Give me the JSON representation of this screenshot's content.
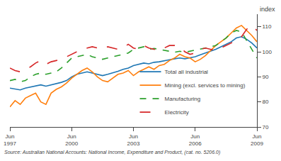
{
  "chart_data": {
    "type": "line",
    "ylabel": "index",
    "annotations": [
      "Source: Australian National Accounts: National Income, Expenditure and Product, (cat. no. 5206.0)"
    ],
    "categories": [
      "Jun\n1997",
      null,
      null,
      null,
      null,
      null,
      null,
      null,
      null,
      null,
      null,
      null,
      "Jun\n2000",
      null,
      null,
      null,
      null,
      null,
      null,
      null,
      null,
      null,
      null,
      null,
      "Jun\n2003",
      null,
      null,
      null,
      null,
      null,
      null,
      null,
      null,
      null,
      null,
      null,
      "Jun\n2006",
      null,
      null,
      null,
      null,
      null,
      null,
      null,
      null,
      null,
      null,
      null,
      "Jun\n2009"
    ],
    "series": [
      {
        "name": "Total all industrial",
        "line_style": "solid",
        "values": [
          85.5,
          85.2,
          84.8,
          85.5,
          86.0,
          86.5,
          86.8,
          86.3,
          86.8,
          87.2,
          87.8,
          88.5,
          90.0,
          91.0,
          91.5,
          92.0,
          91.5,
          91.0,
          90.5,
          91.0,
          91.5,
          92.2,
          93.0,
          93.5,
          94.5,
          95.0,
          95.5,
          95.2,
          95.8,
          96.0,
          96.5,
          96.8,
          97.2,
          97.5,
          97.2,
          97.5,
          98.0,
          98.8,
          99.5,
          100.2,
          101.0,
          102.0,
          103.0,
          104.0,
          105.5,
          106.0,
          105.0,
          103.5,
          101.5
        ]
      },
      {
        "name": "Mining (excl. services to mining)",
        "line_style": "solid",
        "values": [
          78.0,
          80.5,
          79.0,
          81.5,
          82.5,
          83.5,
          80.0,
          79.0,
          83.5,
          85.0,
          86.0,
          87.5,
          89.5,
          91.0,
          92.5,
          93.5,
          92.0,
          90.0,
          88.5,
          88.0,
          89.5,
          91.0,
          91.5,
          92.5,
          90.5,
          92.0,
          93.0,
          94.0,
          93.0,
          94.5,
          95.0,
          96.5,
          97.5,
          99.0,
          98.0,
          97.5,
          96.0,
          97.0,
          98.5,
          100.5,
          102.5,
          104.0,
          105.5,
          107.5,
          109.5,
          110.5,
          108.5,
          106.5,
          104.0
        ]
      },
      {
        "name": "Manufacturing",
        "line_style": "dash",
        "values": [
          88.5,
          89.0,
          88.0,
          88.5,
          90.0,
          91.0,
          91.5,
          91.0,
          91.5,
          92.0,
          93.5,
          95.5,
          97.5,
          98.0,
          98.5,
          99.0,
          98.0,
          97.5,
          97.0,
          97.5,
          98.0,
          98.5,
          99.0,
          99.5,
          101.0,
          101.5,
          102.0,
          101.0,
          101.3,
          101.0,
          100.5,
          100.2,
          99.8,
          100.2,
          99.8,
          100.2,
          100.5,
          101.0,
          101.5,
          102.0,
          102.5,
          104.0,
          105.5,
          107.5,
          108.5,
          108.0,
          104.5,
          101.0,
          97.5
        ]
      },
      {
        "name": "Electricity",
        "line_style": "longdash",
        "values": [
          93.5,
          92.5,
          92.0,
          93.0,
          94.0,
          95.5,
          96.5,
          95.0,
          96.0,
          96.5,
          97.0,
          98.0,
          99.0,
          100.0,
          101.0,
          101.5,
          102.0,
          101.5,
          101.0,
          102.0,
          101.5,
          101.0,
          101.5,
          103.0,
          101.5,
          101.0,
          102.5,
          101.5,
          101.0,
          100.5,
          101.5,
          102.5,
          102.5,
          102.0,
          100.0,
          99.0,
          99.5,
          101.0,
          101.5,
          101.0,
          100.5,
          101.5,
          102.5,
          103.5,
          105.0,
          106.0,
          109.0,
          110.5,
          108.5
        ]
      }
    ],
    "ylim": [
      70,
      115
    ],
    "yticks": [
      70,
      80,
      90,
      100,
      110
    ],
    "grid": false,
    "legend": "lower right"
  }
}
